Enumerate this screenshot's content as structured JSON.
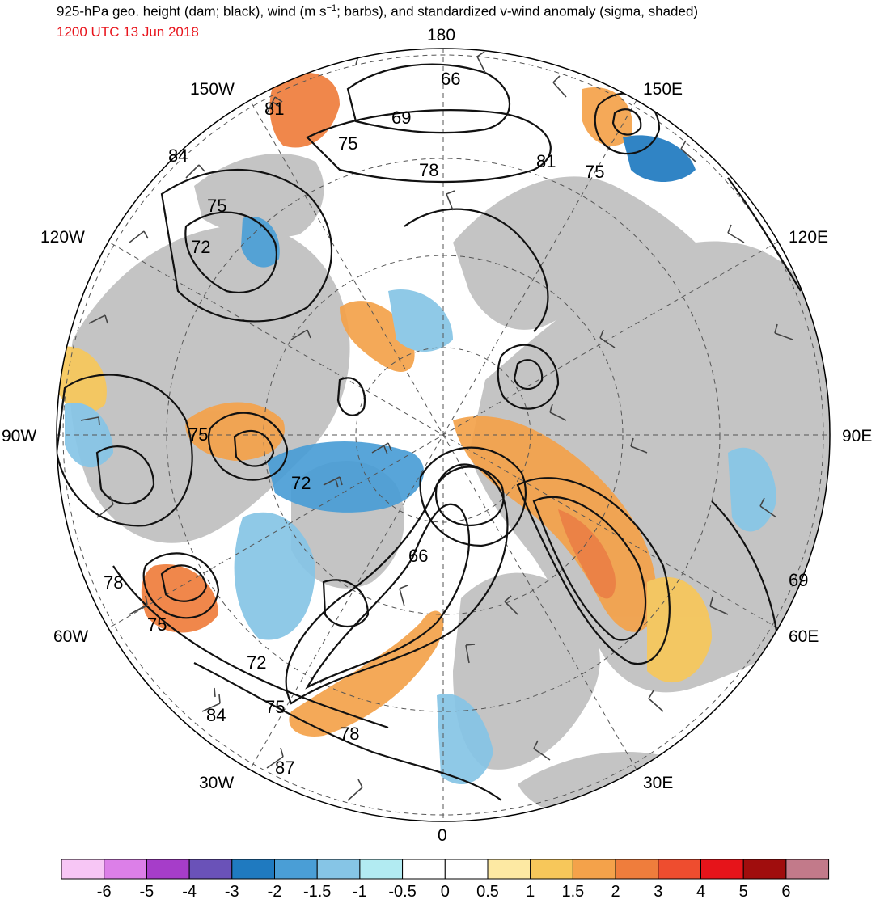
{
  "header": {
    "title_main": "925-hPa geo. height (dam; black), wind (m s",
    "title_sup": "−1",
    "title_rest": "; barbs), and standardized v-wind anomaly (sigma, shaded)",
    "date": "1200 UTC 13 Jun 2018",
    "date_color": "#e8141c"
  },
  "map": {
    "projection": "north polar stereographic",
    "grid_color": "#555555",
    "land_color": "#c4c4c4",
    "longitude_labels": [
      {
        "lon": 0,
        "text": "0"
      },
      {
        "lon": 30,
        "text": "30E"
      },
      {
        "lon": 60,
        "text": "60E"
      },
      {
        "lon": 90,
        "text": "90E"
      },
      {
        "lon": 120,
        "text": "120E"
      },
      {
        "lon": 150,
        "text": "150E"
      },
      {
        "lon": 180,
        "text": "180"
      },
      {
        "lon": -150,
        "text": "150W"
      },
      {
        "lon": -120,
        "text": "120W"
      },
      {
        "lon": -90,
        "text": "90W"
      },
      {
        "lon": -60,
        "text": "60W"
      },
      {
        "lon": -30,
        "text": "30W"
      }
    ],
    "height_labels": [
      "66",
      "69",
      "75",
      "78",
      "81",
      "84",
      "75",
      "72",
      "75",
      "72",
      "66",
      "78",
      "75",
      "72",
      "75",
      "84",
      "87",
      "78",
      "81",
      "75",
      "69"
    ]
  },
  "colorbar": {
    "colors": [
      "#f7c6f5",
      "#dc7fe8",
      "#a63dc9",
      "#6a52b8",
      "#1f7ac0",
      "#4a9ed6",
      "#86c5e6",
      "#b2ebf2",
      "#ffffff",
      "#ffffff",
      "#fde9a3",
      "#f7c75a",
      "#f4a24a",
      "#ef7d3c",
      "#ee4d2f",
      "#e6141a",
      "#a00d0d",
      "#c27a8a"
    ],
    "ticks": [
      "-6",
      "-5",
      "-4",
      "-3",
      "-2",
      "-1.5",
      "-1",
      "-0.5",
      "0",
      "0.5",
      "1",
      "1.5",
      "2",
      "3",
      "4",
      "5",
      "6"
    ]
  }
}
